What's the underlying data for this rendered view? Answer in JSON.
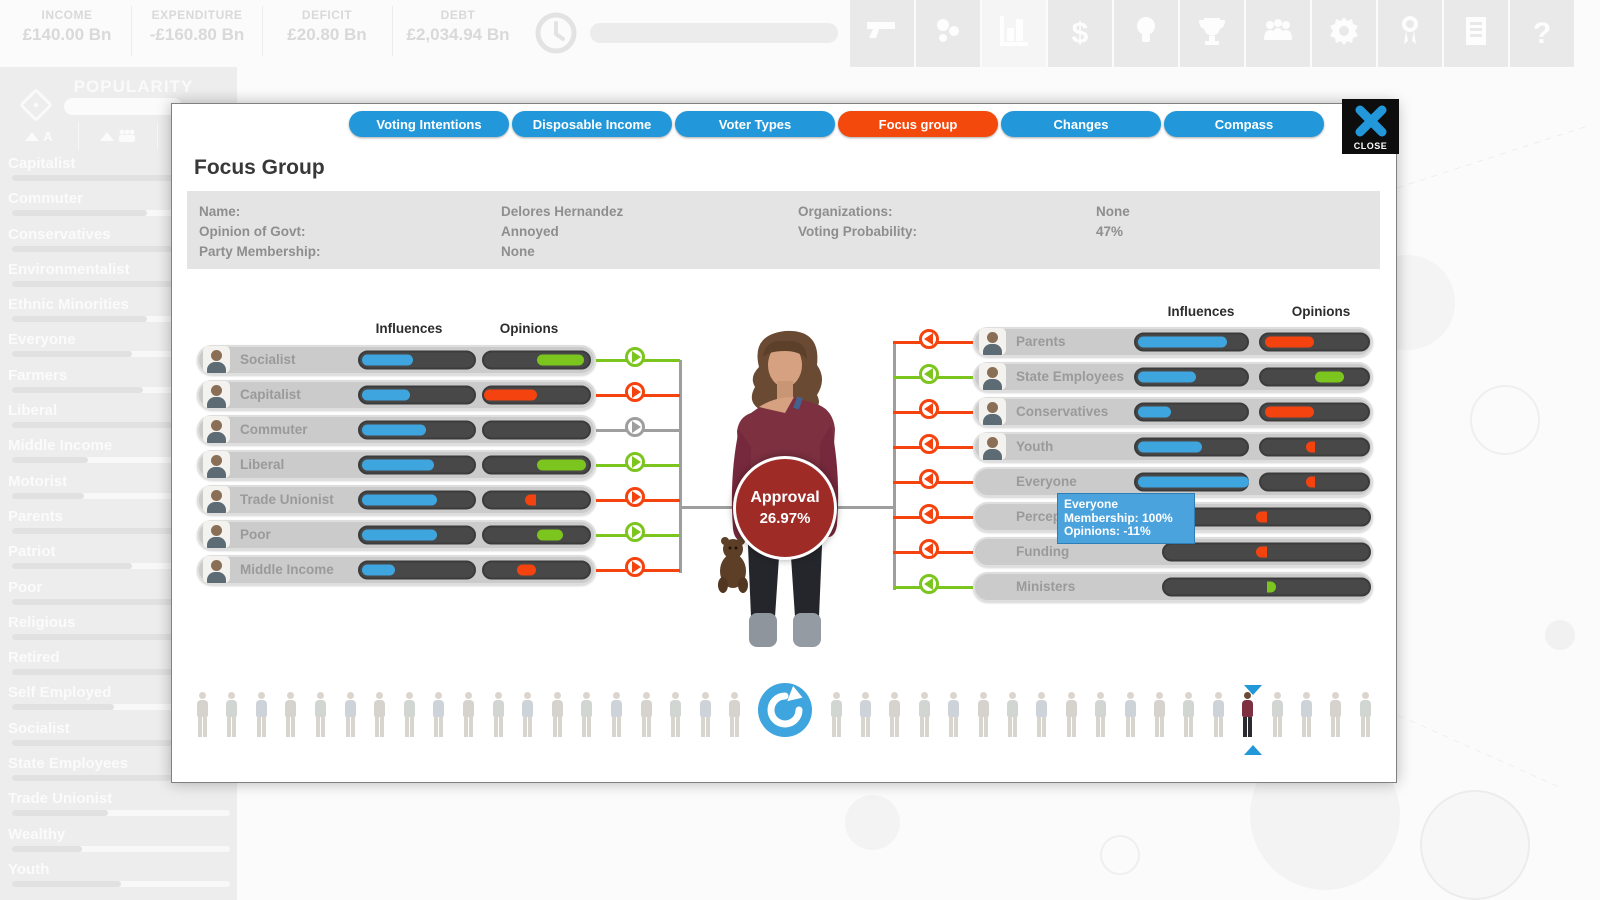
{
  "top_bar": {
    "stats": [
      {
        "label": "INCOME",
        "value": "£140.00 Bn"
      },
      {
        "label": "EXPENDITURE",
        "value": "-£160.80 Bn"
      },
      {
        "label": "DEFICIT",
        "value": "£20.80 Bn"
      },
      {
        "label": "DEBT",
        "value": "£2,034.94 Bn"
      }
    ],
    "icons": [
      "firearms-icon",
      "situations-icon",
      "polls-chart-icon",
      "finance-icon",
      "ideas-icon",
      "achievements-icon",
      "voter-groups-icon",
      "settings-icon",
      "political-capital-icon",
      "reports-icon",
      "help-icon"
    ],
    "active_icon_index": 2
  },
  "sidebar": {
    "title": "POPULARITY",
    "sort_alpha_label": "A",
    "items": [
      {
        "label": "Capitalist",
        "bar": 97
      },
      {
        "label": "Commuter",
        "bar": 62
      },
      {
        "label": "Conservatives",
        "bar": 97
      },
      {
        "label": "Environmentalist",
        "bar": 95
      },
      {
        "label": "Ethnic Minorities",
        "bar": 62
      },
      {
        "label": "Everyone",
        "bar": 55
      },
      {
        "label": "Farmers",
        "bar": 60
      },
      {
        "label": "Liberal",
        "bar": 92
      },
      {
        "label": "Middle Income",
        "bar": 35
      },
      {
        "label": "Motorist",
        "bar": 33
      },
      {
        "label": "Parents",
        "bar": 95
      },
      {
        "label": "Patriot",
        "bar": 55
      },
      {
        "label": "Poor",
        "bar": 95
      },
      {
        "label": "Religious",
        "bar": 97
      },
      {
        "label": "Retired",
        "bar": 95
      },
      {
        "label": "Self Employed",
        "bar": 47
      },
      {
        "label": "Socialist",
        "bar": 95
      },
      {
        "label": "State Employees",
        "bar": 92
      },
      {
        "label": "Trade Unionist",
        "bar": 44
      },
      {
        "label": "Wealthy",
        "bar": 32
      },
      {
        "label": "Youth",
        "bar": 50
      }
    ]
  },
  "dialog": {
    "tabs": [
      {
        "label": "Voting Intentions",
        "active": false
      },
      {
        "label": "Disposable Income",
        "active": false
      },
      {
        "label": "Voter Types",
        "active": false
      },
      {
        "label": "Focus group",
        "active": true
      },
      {
        "label": "Changes",
        "active": false
      },
      {
        "label": "Compass",
        "active": false
      }
    ],
    "close_label": "CLOSE",
    "title": "Focus Group",
    "info": {
      "name_label": "Name:",
      "name_value": "Delores Hernandez",
      "opinion_label": "Opinion of Govt:",
      "opinion_value": "Annoyed",
      "party_label": "Party Membership:",
      "party_value": "None",
      "organizations_label": "Organizations:",
      "organizations_value": "None",
      "voting_label": "Voting Probability:",
      "voting_value": "47%"
    },
    "columns": {
      "influences": "Influences",
      "opinions": "Opinions"
    },
    "approval": {
      "label": "Approval",
      "value": "26.97%"
    },
    "left_groups": [
      {
        "label": "Socialist",
        "influence": 45,
        "opinion": 90,
        "link": "positive"
      },
      {
        "label": "Capitalist",
        "influence": 42,
        "opinion": -100,
        "link": "negative"
      },
      {
        "label": "Commuter",
        "influence": 56,
        "opinion": 0,
        "link": "neutral"
      },
      {
        "label": "Liberal",
        "influence": 63,
        "opinion": 95,
        "link": "positive"
      },
      {
        "label": "Trade Unionist",
        "influence": 66,
        "opinion": -22,
        "link": "negative"
      },
      {
        "label": "Poor",
        "influence": 66,
        "opinion": 50,
        "link": "positive"
      },
      {
        "label": "Middle Income",
        "influence": 29,
        "opinion": -38,
        "link": "negative"
      }
    ],
    "right_groups": [
      {
        "label": "Parents",
        "influence": 80,
        "opinion": -92,
        "link": "negative",
        "avatar": true,
        "long": false
      },
      {
        "label": "State Employees",
        "influence": 52,
        "opinion": 55,
        "link": "positive",
        "avatar": true,
        "long": false
      },
      {
        "label": "Conservatives",
        "influence": 30,
        "opinion": -92,
        "link": "negative",
        "avatar": true,
        "long": false
      },
      {
        "label": "Youth",
        "influence": 58,
        "opinion": -14,
        "link": "negative",
        "avatar": true,
        "long": false
      },
      {
        "label": "Everyone",
        "influence": 100,
        "opinion": -11,
        "link": "negative",
        "avatar": false,
        "long": false
      },
      {
        "label": "Perception",
        "influence": null,
        "opinion": -10,
        "link": "negative",
        "avatar": false,
        "long": true
      },
      {
        "label": "Funding",
        "influence": null,
        "opinion": -10,
        "link": "negative",
        "avatar": false,
        "long": true
      },
      {
        "label": "Ministers",
        "influence": null,
        "opinion": 8,
        "link": "positive",
        "avatar": false,
        "long": true
      }
    ],
    "tooltip": {
      "line1": "Everyone",
      "line2": "Membership: 100%",
      "line3": "Opinions: -11%"
    },
    "strip": {
      "left_count": 19,
      "right_count": 19,
      "selected_index": 14
    }
  },
  "colors": {
    "positive": "#7cc51e",
    "negative": "#f5430f",
    "neutral": "#9e9e9e",
    "influence": "#3fa5de",
    "tab": "#2298da",
    "tab_active": "#f4490c",
    "approval_bg": "#9e2b26",
    "tooltip_bg": "#4ba3dd"
  }
}
